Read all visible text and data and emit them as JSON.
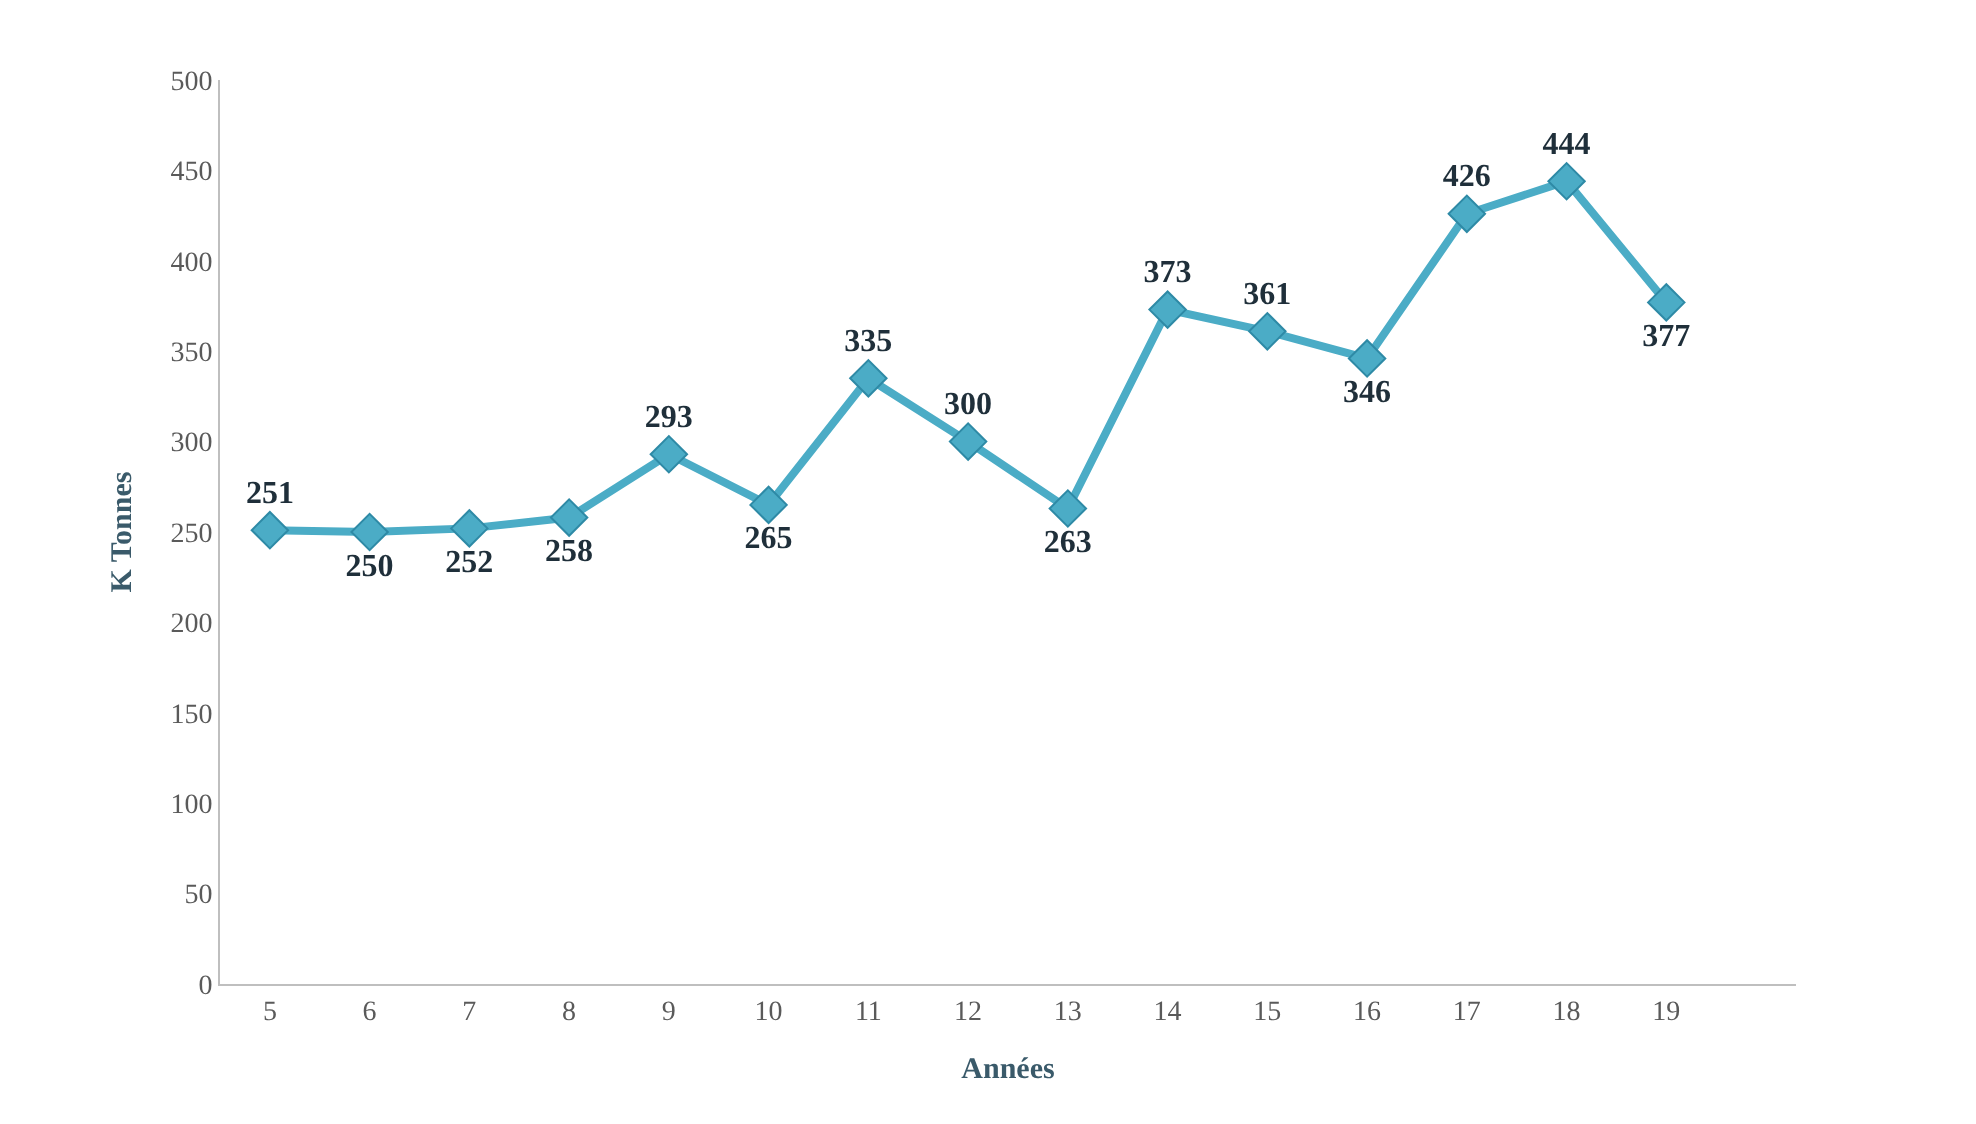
{
  "chart_data": {
    "type": "line",
    "xlabel": "Années",
    "ylabel": "K Tonnes",
    "categories": [
      "5",
      "6",
      "7",
      "8",
      "9",
      "10",
      "11",
      "12",
      "13",
      "14",
      "15",
      "16",
      "17",
      "18",
      "19"
    ],
    "series": [
      {
        "color": "#4bacc6",
        "values": [
          251,
          250,
          252,
          258,
          293,
          265,
          335,
          300,
          263,
          373,
          361,
          346,
          426,
          444,
          377
        ]
      }
    ],
    "ylim": [
      0,
      500
    ],
    "yticks": [
      0,
      50,
      100,
      150,
      200,
      250,
      300,
      350,
      400,
      450,
      500
    ],
    "data_labels": true,
    "marker": "diamond",
    "line_style": "solid",
    "legend": false
  }
}
